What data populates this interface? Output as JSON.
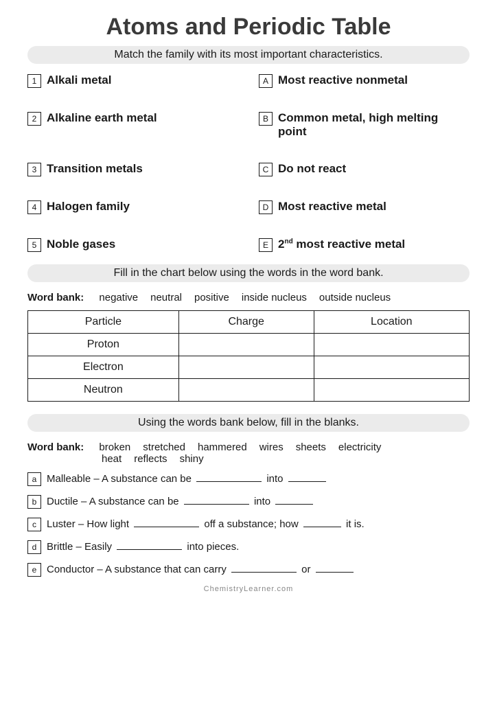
{
  "title": "Atoms and Periodic Table",
  "section1": {
    "header": "Match the family with its most important characteristics.",
    "left": [
      {
        "num": "1",
        "text": "Alkali metal"
      },
      {
        "num": "2",
        "text": "Alkaline earth metal"
      },
      {
        "num": "3",
        "text": "Transition metals"
      },
      {
        "num": "4",
        "text": "Halogen family"
      },
      {
        "num": "5",
        "text": "Noble gases"
      }
    ],
    "right": [
      {
        "letter": "A",
        "text": "Most reactive nonmetal"
      },
      {
        "letter": "B",
        "text": "Common metal, high melting point"
      },
      {
        "letter": "C",
        "text": "Do not react"
      },
      {
        "letter": "D",
        "text": "Most reactive metal"
      },
      {
        "letter": "E",
        "text_html": "2<sup>nd</sup> most reactive metal"
      }
    ]
  },
  "section2": {
    "header": "Fill in the chart below using the words in the word bank.",
    "wordbank_label": "Word bank:",
    "words": [
      "negative",
      "neutral",
      "positive",
      "inside nucleus",
      "outside nucleus"
    ],
    "table": {
      "headers": [
        "Particle",
        "Charge",
        "Location"
      ],
      "rows": [
        "Proton",
        "Electron",
        "Neutron"
      ]
    }
  },
  "section3": {
    "header": "Using the words bank below, fill in the blanks.",
    "wordbank_label": "Word bank:",
    "words_line1": [
      "broken",
      "stretched",
      "hammered",
      "wires",
      "sheets",
      "electricity"
    ],
    "words_line2": [
      "heat",
      "reflects",
      "shiny"
    ],
    "items": [
      {
        "letter": "a",
        "parts": [
          "Malleable – A substance can be ",
          "BLANK_LONG",
          " into ",
          "BLANK_SHORT"
        ]
      },
      {
        "letter": "b",
        "parts": [
          "Ductile – A substance can be ",
          "BLANK_LONG",
          " into ",
          "BLANK_SHORT"
        ]
      },
      {
        "letter": "c",
        "parts": [
          "Luster – How light ",
          "BLANK_LONG",
          " off a substance; how ",
          "BLANK_SHORT",
          " it is."
        ]
      },
      {
        "letter": "d",
        "parts": [
          "Brittle – Easily ",
          "BLANK_LONG",
          " into pieces."
        ]
      },
      {
        "letter": "e",
        "parts": [
          "Conductor – A substance that can carry ",
          "BLANK_LONG",
          " or ",
          "BLANK_SHORT"
        ]
      }
    ]
  },
  "footer": "ChemistryLearner.com"
}
